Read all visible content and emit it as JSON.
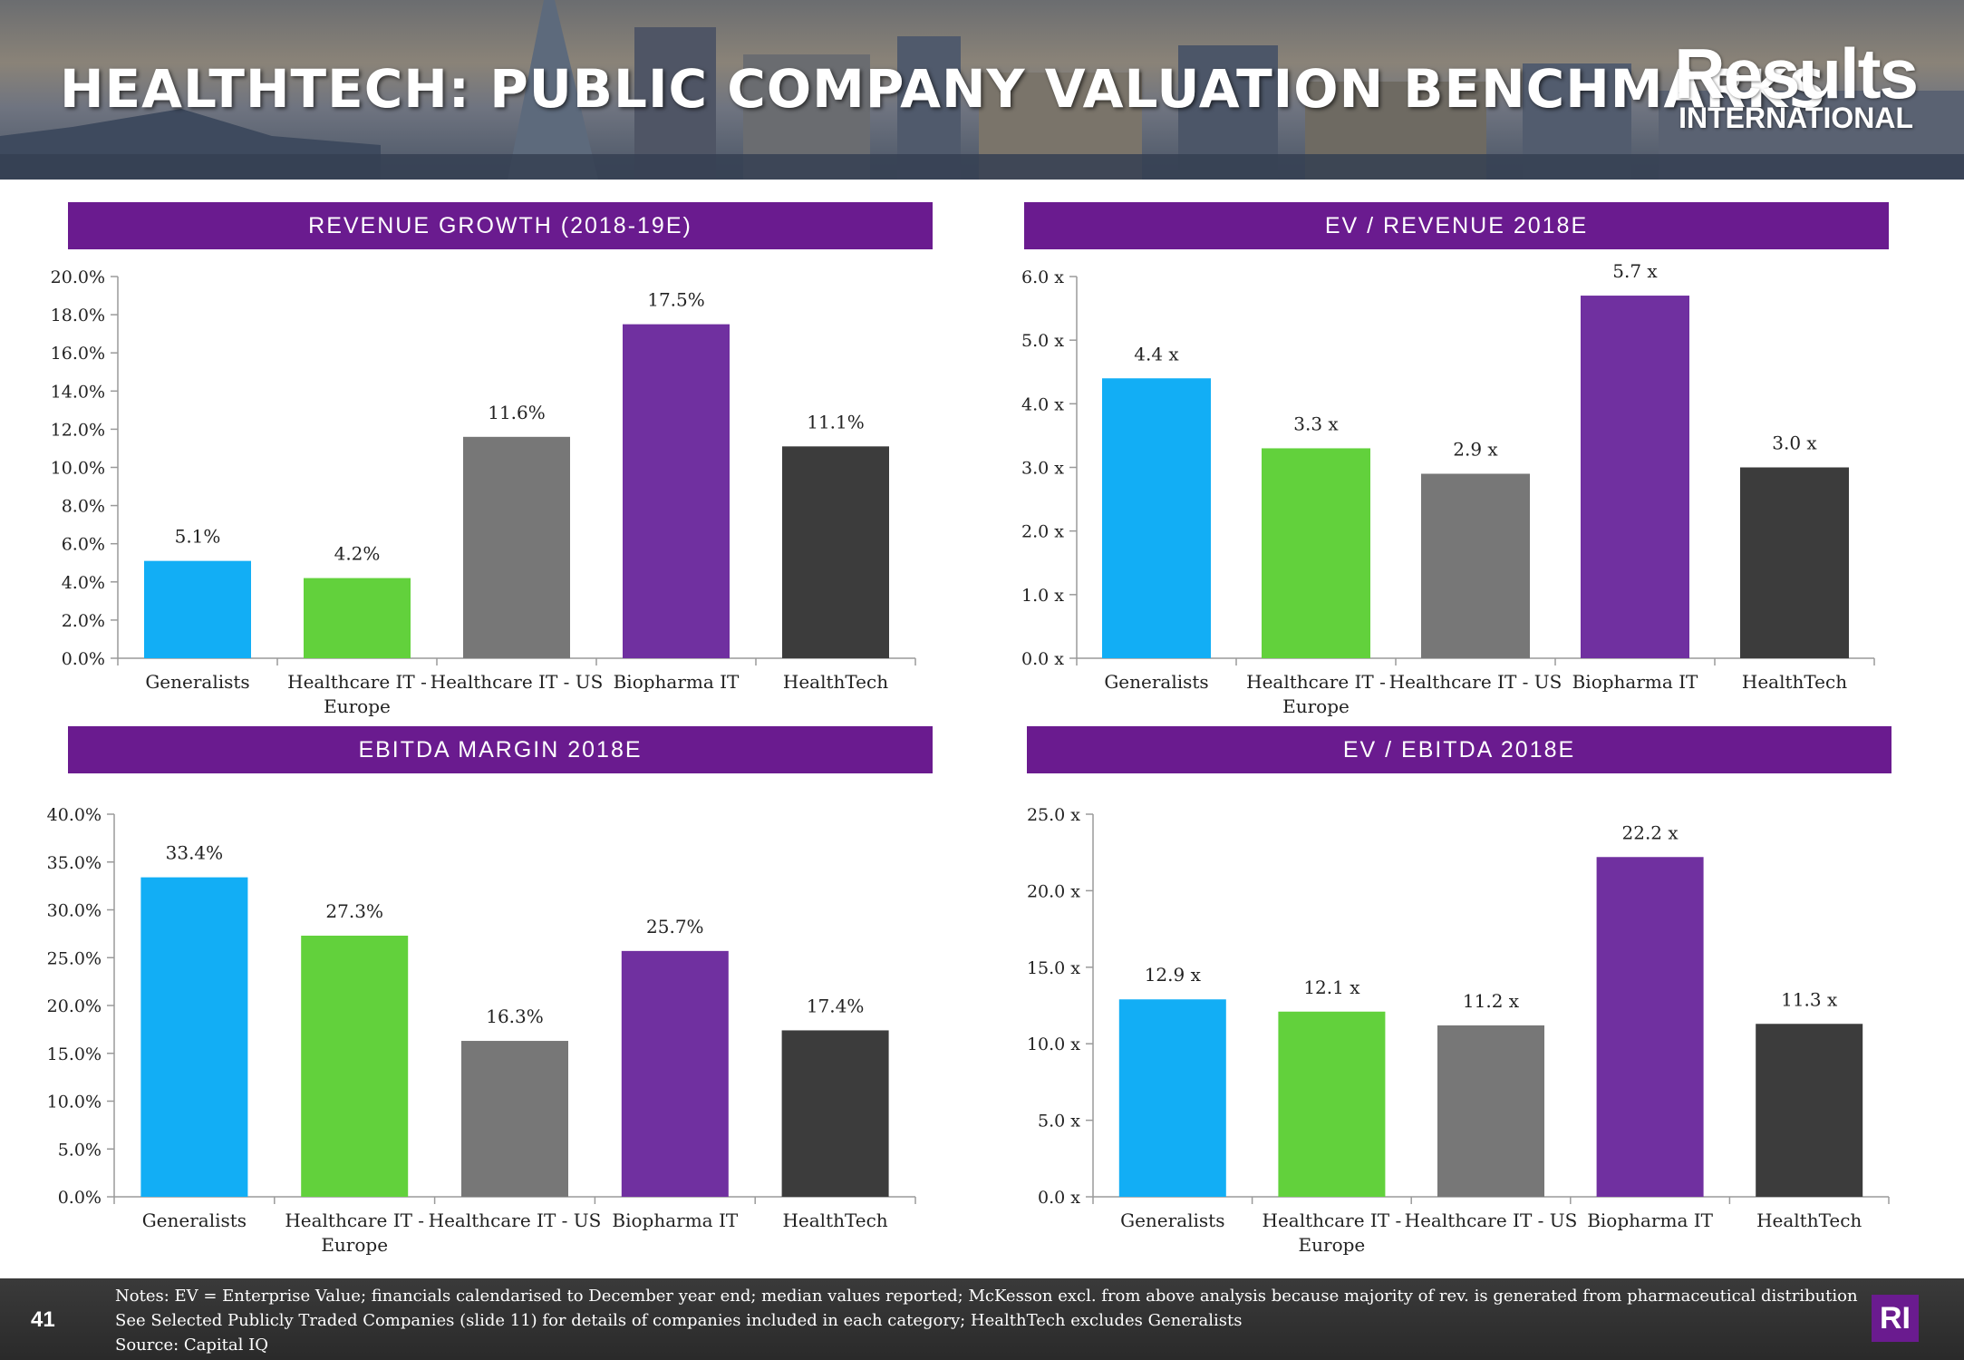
{
  "header": {
    "title": "HEALTHTECH: PUBLIC COMPANY VALUATION BENCHMARKS",
    "logo_main": "Results",
    "logo_sub": "INTERNATIONAL"
  },
  "colors": {
    "panel_bg": "#6a1b8f",
    "series": [
      "#12aef5",
      "#62d13c",
      "#777777",
      "#7030a0",
      "#3c3c3c"
    ]
  },
  "chart_data": [
    {
      "type": "bar",
      "title": "REVENUE GROWTH (2018-19E)",
      "categories": [
        "Generalists",
        "Healthcare IT - Europe",
        "Healthcare IT - US",
        "Biopharma IT",
        "HealthTech"
      ],
      "category_lines": [
        [
          "Generalists"
        ],
        [
          "Healthcare IT -",
          "Europe"
        ],
        [
          "Healthcare IT - US"
        ],
        [
          "Biopharma IT"
        ],
        [
          "HealthTech"
        ]
      ],
      "values": [
        5.1,
        4.2,
        11.6,
        17.5,
        11.1
      ],
      "value_labels": [
        "5.1%",
        "4.2%",
        "11.6%",
        "17.5%",
        "11.1%"
      ],
      "ylim": [
        0,
        20
      ],
      "yticks": [
        "0.0%",
        "2.0%",
        "4.0%",
        "6.0%",
        "8.0%",
        "10.0%",
        "12.0%",
        "14.0%",
        "16.0%",
        "18.0%",
        "20.0%"
      ],
      "xlabel": "",
      "ylabel": "",
      "grid": false
    },
    {
      "type": "bar",
      "title": "EV / REVENUE 2018E",
      "categories": [
        "Generalists",
        "Healthcare IT - Europe",
        "Healthcare IT - US",
        "Biopharma IT",
        "HealthTech"
      ],
      "category_lines": [
        [
          "Generalists"
        ],
        [
          "Healthcare IT -",
          "Europe"
        ],
        [
          "Healthcare IT - US"
        ],
        [
          "Biopharma IT"
        ],
        [
          "HealthTech"
        ]
      ],
      "values": [
        4.4,
        3.3,
        2.9,
        5.7,
        3.0
      ],
      "value_labels": [
        "4.4 x",
        "3.3 x",
        "2.9 x",
        "5.7 x",
        "3.0 x"
      ],
      "ylim": [
        0,
        6
      ],
      "yticks": [
        "0.0 x",
        "1.0 x",
        "2.0 x",
        "3.0 x",
        "4.0 x",
        "5.0 x",
        "6.0 x"
      ],
      "xlabel": "",
      "ylabel": "",
      "grid": false
    },
    {
      "type": "bar",
      "title": "EBITDA MARGIN 2018E",
      "categories": [
        "Generalists",
        "Healthcare IT - Europe",
        "Healthcare IT - US",
        "Biopharma IT",
        "HealthTech"
      ],
      "category_lines": [
        [
          "Generalists"
        ],
        [
          "Healthcare IT -",
          "Europe"
        ],
        [
          "Healthcare IT - US"
        ],
        [
          "Biopharma IT"
        ],
        [
          "HealthTech"
        ]
      ],
      "values": [
        33.4,
        27.3,
        16.3,
        25.7,
        17.4
      ],
      "value_labels": [
        "33.4%",
        "27.3%",
        "16.3%",
        "25.7%",
        "17.4%"
      ],
      "ylim": [
        0,
        40
      ],
      "yticks": [
        "0.0%",
        "5.0%",
        "10.0%",
        "15.0%",
        "20.0%",
        "25.0%",
        "30.0%",
        "35.0%",
        "40.0%"
      ],
      "xlabel": "",
      "ylabel": "",
      "grid": false
    },
    {
      "type": "bar",
      "title": "EV / EBITDA 2018E",
      "categories": [
        "Generalists",
        "Healthcare IT - Europe",
        "Healthcare IT - US",
        "Biopharma IT",
        "HealthTech"
      ],
      "category_lines": [
        [
          "Generalists"
        ],
        [
          "Healthcare IT -",
          "Europe"
        ],
        [
          "Healthcare IT - US"
        ],
        [
          "Biopharma IT"
        ],
        [
          "HealthTech"
        ]
      ],
      "values": [
        12.9,
        12.1,
        11.2,
        22.2,
        11.3
      ],
      "value_labels": [
        "12.9 x",
        "12.1 x",
        "11.2 x",
        "22.2 x",
        "11.3 x"
      ],
      "ylim": [
        0,
        25
      ],
      "yticks": [
        "0.0 x",
        "5.0 x",
        "10.0 x",
        "15.0 x",
        "20.0 x",
        "25.0 x"
      ],
      "xlabel": "",
      "ylabel": "",
      "grid": false
    }
  ],
  "footer": {
    "page_number": "41",
    "notes": [
      "Notes: EV = Enterprise Value; financials calendarised to December year end; median values reported; McKesson excl. from above analysis because majority of rev. is generated from pharmaceutical distribution",
      "See Selected Publicly Traded Companies (slide 11) for details of companies included in each category; HealthTech excludes Generalists",
      "Source: Capital IQ"
    ],
    "logo": "RI"
  }
}
